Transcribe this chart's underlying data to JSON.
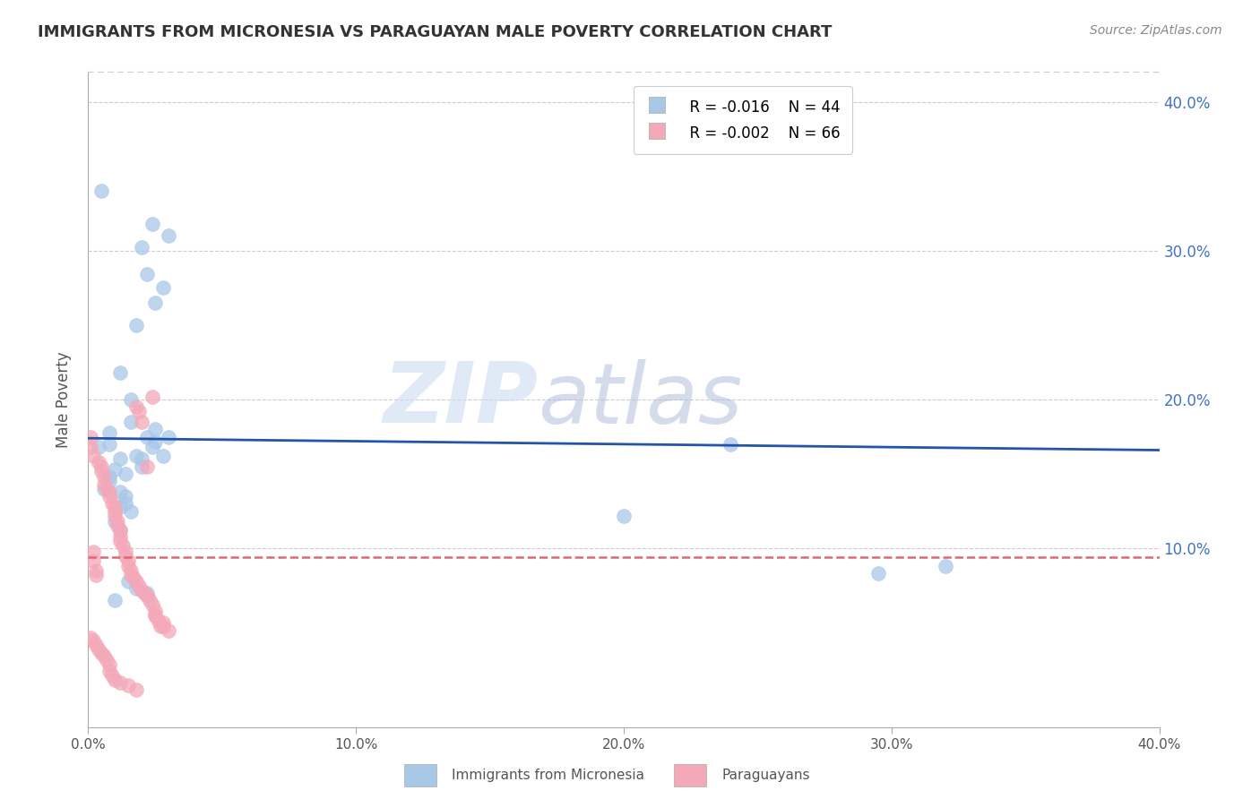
{
  "title": "IMMIGRANTS FROM MICRONESIA VS PARAGUAYAN MALE POVERTY CORRELATION CHART",
  "source": "Source: ZipAtlas.com",
  "ylabel": "Male Poverty",
  "xlim": [
    0.0,
    0.4
  ],
  "ylim": [
    -0.02,
    0.42
  ],
  "legend_blue_R": "R = -0.016",
  "legend_blue_N": "N = 44",
  "legend_pink_R": "R = -0.002",
  "legend_pink_N": "N = 66",
  "blue_color": "#a8c8e8",
  "pink_color": "#f4a8b8",
  "trend_blue_color": "#2255aa",
  "trend_pink_color": "#dd6677",
  "watermark_zip": "ZIP",
  "watermark_atlas": "atlas",
  "blue_trend_y0": 0.174,
  "blue_trend_y1": 0.166,
  "pink_trend_y0": 0.094,
  "pink_trend_y1": 0.094,
  "blue_scatter_x": [
    0.005,
    0.02,
    0.024,
    0.022,
    0.018,
    0.028,
    0.03,
    0.025,
    0.012,
    0.016,
    0.016,
    0.008,
    0.008,
    0.004,
    0.012,
    0.018,
    0.022,
    0.025,
    0.01,
    0.014,
    0.024,
    0.008,
    0.008,
    0.006,
    0.012,
    0.014,
    0.014,
    0.012,
    0.016,
    0.02,
    0.025,
    0.02,
    0.03,
    0.028,
    0.01,
    0.012,
    0.2,
    0.295,
    0.32,
    0.24,
    0.015,
    0.018,
    0.022,
    0.01
  ],
  "blue_scatter_y": [
    0.34,
    0.302,
    0.318,
    0.284,
    0.25,
    0.275,
    0.31,
    0.265,
    0.218,
    0.2,
    0.185,
    0.178,
    0.17,
    0.168,
    0.16,
    0.162,
    0.175,
    0.18,
    0.153,
    0.15,
    0.168,
    0.148,
    0.145,
    0.14,
    0.138,
    0.135,
    0.13,
    0.128,
    0.125,
    0.155,
    0.172,
    0.16,
    0.175,
    0.162,
    0.118,
    0.112,
    0.122,
    0.083,
    0.088,
    0.17,
    0.078,
    0.073,
    0.07,
    0.065
  ],
  "pink_scatter_x": [
    0.001,
    0.002,
    0.002,
    0.003,
    0.003,
    0.001,
    0.002,
    0.004,
    0.005,
    0.005,
    0.006,
    0.006,
    0.007,
    0.008,
    0.008,
    0.009,
    0.01,
    0.01,
    0.01,
    0.011,
    0.011,
    0.012,
    0.012,
    0.012,
    0.013,
    0.014,
    0.014,
    0.015,
    0.015,
    0.016,
    0.016,
    0.017,
    0.018,
    0.018,
    0.019,
    0.019,
    0.02,
    0.02,
    0.021,
    0.022,
    0.023,
    0.024,
    0.025,
    0.025,
    0.026,
    0.028,
    0.028,
    0.03,
    0.001,
    0.002,
    0.003,
    0.004,
    0.005,
    0.006,
    0.007,
    0.008,
    0.008,
    0.009,
    0.01,
    0.012,
    0.015,
    0.018,
    0.025,
    0.027,
    0.022,
    0.024
  ],
  "pink_scatter_y": [
    0.175,
    0.092,
    0.098,
    0.085,
    0.082,
    0.168,
    0.162,
    0.158,
    0.155,
    0.152,
    0.148,
    0.143,
    0.14,
    0.138,
    0.135,
    0.13,
    0.128,
    0.125,
    0.122,
    0.118,
    0.115,
    0.112,
    0.108,
    0.105,
    0.102,
    0.098,
    0.095,
    0.092,
    0.088,
    0.085,
    0.082,
    0.08,
    0.078,
    0.195,
    0.192,
    0.075,
    0.072,
    0.185,
    0.07,
    0.068,
    0.065,
    0.062,
    0.058,
    0.055,
    0.052,
    0.05,
    0.048,
    0.045,
    0.04,
    0.038,
    0.035,
    0.032,
    0.03,
    0.028,
    0.025,
    0.022,
    0.018,
    0.015,
    0.012,
    0.01,
    0.008,
    0.005,
    0.055,
    0.048,
    0.155,
    0.202
  ]
}
